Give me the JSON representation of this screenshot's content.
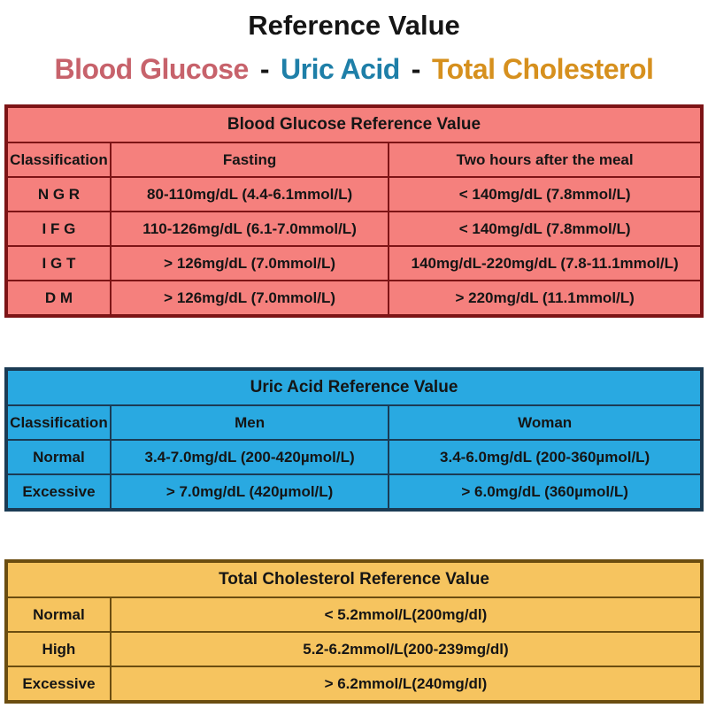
{
  "page": {
    "title": "Reference Value",
    "subtitle": {
      "blood_glucose": "Blood Glucose",
      "separator": "-",
      "uric_acid": "Uric Acid",
      "total_cholesterol": "Total Cholesterol"
    },
    "subtitle_colors": {
      "blood_glucose": "#C7626B",
      "uric_acid": "#1E7FA8",
      "total_cholesterol": "#D6901E"
    }
  },
  "tables": [
    {
      "id": "blood-glucose",
      "title": "Blood Glucose Reference Value",
      "colors": {
        "background": "#F5807D",
        "border": "#7D1416"
      },
      "columns": [
        "Classification",
        "Fasting",
        "Two hours after the meal"
      ],
      "rows": [
        [
          "N G R",
          "80-110mg/dL (4.4-6.1mmol/L)",
          "< 140mg/dL (7.8mmol/L)"
        ],
        [
          "I F G",
          "110-126mg/dL (6.1-7.0mmol/L)",
          "< 140mg/dL (7.8mmol/L)"
        ],
        [
          "I G T",
          "> 126mg/dL (7.0mmol/L)",
          "140mg/dL-220mg/dL (7.8-11.1mmol/L)"
        ],
        [
          "D M",
          "> 126mg/dL (7.0mmol/L)",
          "> 220mg/dL (11.1mmol/L)"
        ]
      ]
    },
    {
      "id": "uric-acid",
      "title": "Uric Acid Reference Value",
      "colors": {
        "background": "#29A9E1",
        "border": "#1B3B54"
      },
      "columns": [
        "Classification",
        "Men",
        "Woman"
      ],
      "rows": [
        [
          "Normal",
          "3.4-7.0mg/dL (200-420µmol/L)",
          "3.4-6.0mg/dL (200-360µmol/L)"
        ],
        [
          "Excessive",
          "> 7.0mg/dL (420µmol/L)",
          "> 6.0mg/dL (360µmol/L)"
        ]
      ]
    },
    {
      "id": "total-cholesterol",
      "title": "Total Cholesterol Reference Value",
      "colors": {
        "background": "#F6C45F",
        "border": "#6B4D10"
      },
      "columns": [],
      "rows": [
        [
          "Normal",
          "< 5.2mmol/L(200mg/dl)"
        ],
        [
          "High",
          "5.2-6.2mmol/L(200-239mg/dl)"
        ],
        [
          "Excessive",
          "> 6.2mmol/L(240mg/dl)"
        ]
      ]
    }
  ]
}
